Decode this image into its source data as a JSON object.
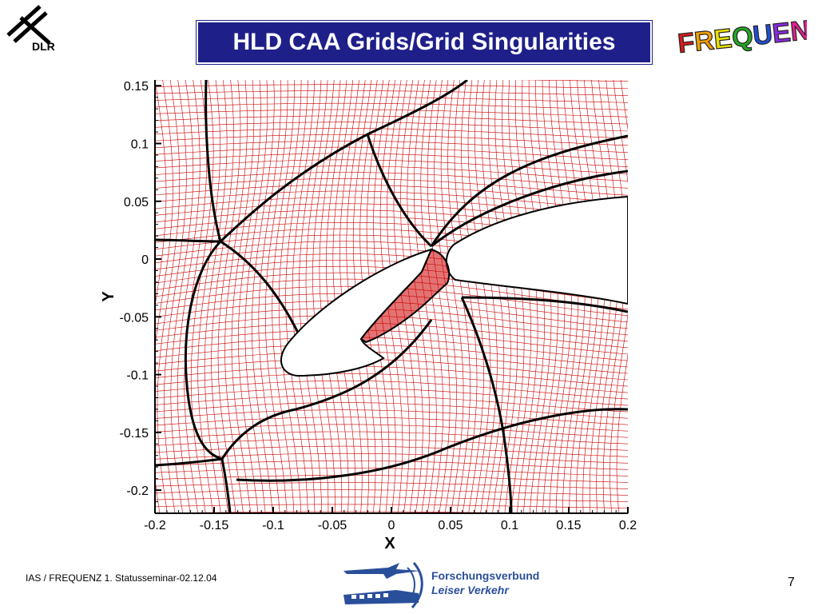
{
  "header": {
    "title": "HLD CAA Grids/Grid Singularities",
    "logo_left": "DLR",
    "logo_right": "FREQUENZ"
  },
  "plot": {
    "xlabel": "X",
    "ylabel": "Y",
    "x_ticks": [
      "-0.2",
      "-0.15",
      "-0.1",
      "-0.05",
      "0",
      "0.05",
      "0.1",
      "0.15",
      "0.2"
    ],
    "y_ticks": [
      "0.15",
      "0.1",
      "0.05",
      "0",
      "-0.05",
      "-0.1",
      "-0.15",
      "-0.2"
    ],
    "xlim": [
      -0.2,
      0.2
    ],
    "ylim": [
      -0.22,
      0.155
    ],
    "grid_color": "#cc0000",
    "block_line_color": "#000000"
  },
  "footer": {
    "text": "IAS / FREQUENZ  1. Statusseminar-02.12.04",
    "page_number": "7",
    "partner_line1": "Forschungsverbund",
    "partner_line2": "Leiser Verkehr"
  }
}
